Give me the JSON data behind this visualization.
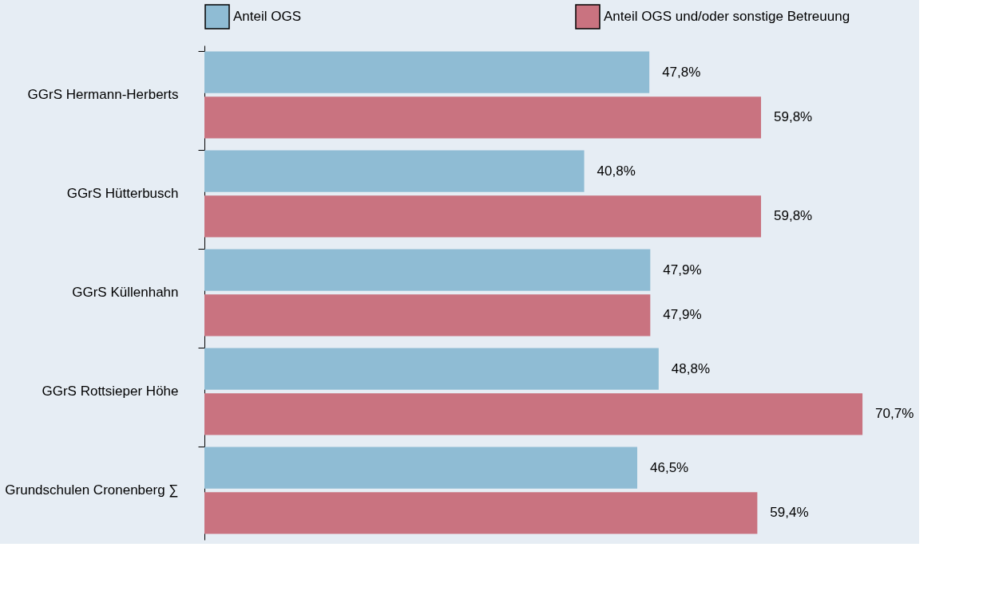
{
  "chart_data": {
    "type": "bar",
    "orientation": "horizontal",
    "categories": [
      "GGrS Hermann-Herberts",
      "GGrS Hütterbusch",
      "GGrS Küllenhahn",
      "GGrS Rottsieper Höhe",
      "Grundschulen Cronenberg ∑"
    ],
    "series": [
      {
        "name": "Anteil OGS",
        "color": "#8fbcd4",
        "values": [
          47.8,
          40.8,
          47.9,
          48.8,
          46.5
        ],
        "value_labels": [
          "47,8%",
          "40,8%",
          "47,9%",
          "48,8%",
          "46,5%"
        ]
      },
      {
        "name": "Anteil OGS und/oder sonstige Betreuung",
        "color": "#c97380",
        "values": [
          59.8,
          59.8,
          47.9,
          70.7,
          59.4
        ],
        "value_labels": [
          "59,8%",
          "59,8%",
          "47,9%",
          "70,7%",
          "59,4%"
        ]
      }
    ],
    "legend": "top",
    "grid": false
  }
}
